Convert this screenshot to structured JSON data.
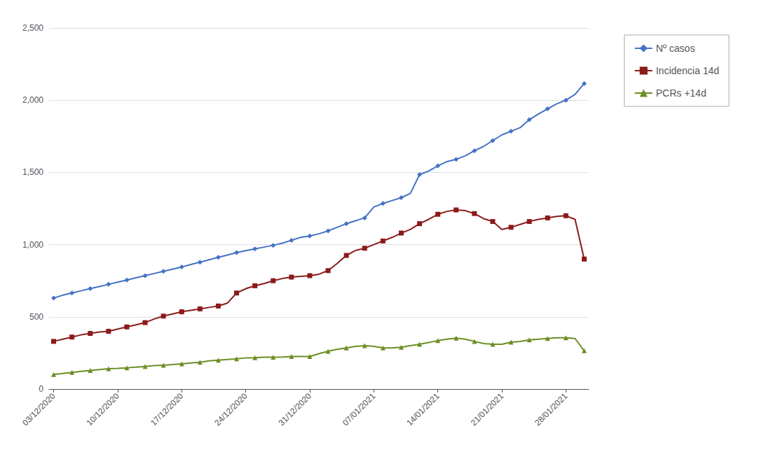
{
  "chart_data": {
    "type": "line",
    "categories": [
      "03/12/2020",
      null,
      null,
      null,
      null,
      null,
      null,
      "10/12/2020",
      null,
      null,
      null,
      null,
      null,
      null,
      "17/12/2020",
      null,
      null,
      null,
      null,
      null,
      null,
      "24/12/2020",
      null,
      null,
      null,
      null,
      null,
      null,
      "31/12/2020",
      null,
      null,
      null,
      null,
      null,
      null,
      "07/01/2021",
      null,
      null,
      null,
      null,
      null,
      null,
      "14/01/2021",
      null,
      null,
      null,
      null,
      null,
      null,
      "21/01/2021",
      null,
      null,
      null,
      null,
      null,
      null,
      "28/01/2021",
      null,
      null
    ],
    "series": [
      {
        "name": "Nº casos",
        "color": "#4472C4",
        "marker": "diamond",
        "values": [
          630,
          650,
          665,
          680,
          695,
          710,
          725,
          740,
          755,
          770,
          785,
          800,
          815,
          830,
          845,
          862,
          878,
          895,
          912,
          928,
          945,
          958,
          970,
          983,
          995,
          1010,
          1030,
          1050,
          1060,
          1075,
          1095,
          1120,
          1145,
          1165,
          1185,
          1260,
          1285,
          1305,
          1325,
          1355,
          1485,
          1510,
          1545,
          1575,
          1590,
          1615,
          1650,
          1680,
          1720,
          1760,
          1785,
          1810,
          1865,
          1905,
          1940,
          1975,
          2000,
          2040,
          2115
        ]
      },
      {
        "name": "Incidencia 14d",
        "color": "#8B1A1A",
        "marker": "square",
        "values": [
          330,
          345,
          360,
          375,
          385,
          395,
          400,
          415,
          430,
          445,
          460,
          485,
          505,
          520,
          535,
          545,
          555,
          565,
          575,
          595,
          665,
          695,
          715,
          730,
          750,
          765,
          775,
          780,
          785,
          795,
          820,
          870,
          925,
          960,
          975,
          1000,
          1025,
          1050,
          1080,
          1105,
          1145,
          1175,
          1210,
          1230,
          1240,
          1235,
          1215,
          1180,
          1160,
          1105,
          1120,
          1140,
          1160,
          1175,
          1185,
          1195,
          1200,
          1175,
          900
        ]
      },
      {
        "name": "PCRs +14d",
        "color": "#6B8E23",
        "marker": "triangle",
        "values": [
          100,
          108,
          115,
          122,
          128,
          134,
          140,
          143,
          147,
          152,
          156,
          162,
          165,
          170,
          175,
          180,
          185,
          195,
          200,
          205,
          210,
          215,
          217,
          220,
          220,
          222,
          225,
          225,
          225,
          245,
          262,
          275,
          285,
          295,
          300,
          295,
          285,
          285,
          290,
          300,
          310,
          322,
          335,
          345,
          352,
          345,
          330,
          315,
          310,
          310,
          325,
          330,
          340,
          345,
          350,
          355,
          355,
          350,
          265
        ]
      }
    ],
    "ylim": [
      0,
      2500
    ],
    "yticks": [
      0,
      500,
      1000,
      1500,
      2000,
      2500
    ],
    "grid": true,
    "legend": "right"
  }
}
